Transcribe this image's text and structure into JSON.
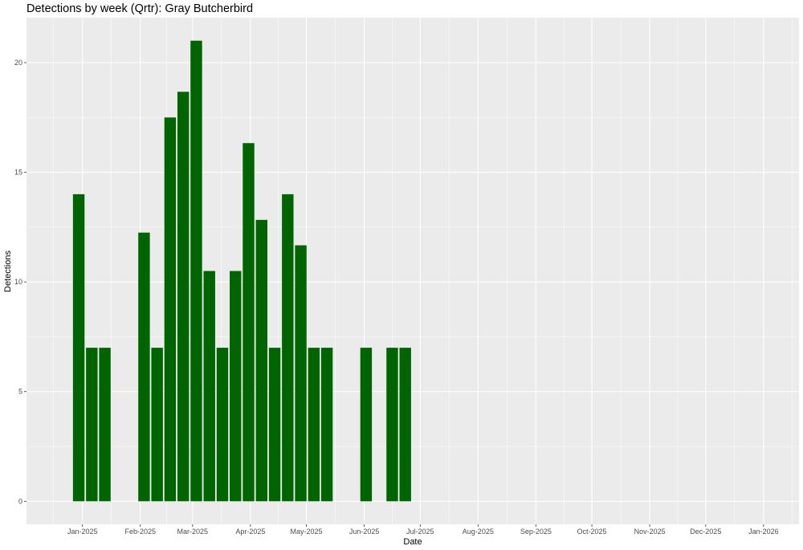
{
  "chart_data": {
    "type": "bar",
    "title": "Detections by week (Qrtr): Gray Butcherbird",
    "xlabel": "Date",
    "ylabel": "Detections",
    "x_range": [
      "2024-12-02",
      "2026-01-20"
    ],
    "ylim": [
      -1.05,
      22.05
    ],
    "y_ticks": [
      0,
      5,
      10,
      15,
      20
    ],
    "x_ticks": [
      {
        "date": "2025-01-01",
        "label": "Jan-2025"
      },
      {
        "date": "2025-02-01",
        "label": "Feb-2025"
      },
      {
        "date": "2025-03-01",
        "label": "Mar-2025"
      },
      {
        "date": "2025-04-01",
        "label": "Apr-2025"
      },
      {
        "date": "2025-05-01",
        "label": "May-2025"
      },
      {
        "date": "2025-06-01",
        "label": "Jun-2025"
      },
      {
        "date": "2025-07-01",
        "label": "Jul-2025"
      },
      {
        "date": "2025-08-01",
        "label": "Aug-2025"
      },
      {
        "date": "2025-09-01",
        "label": "Sep-2025"
      },
      {
        "date": "2025-10-01",
        "label": "Oct-2025"
      },
      {
        "date": "2025-11-01",
        "label": "Nov-2025"
      },
      {
        "date": "2025-12-01",
        "label": "Dec-2025"
      },
      {
        "date": "2026-01-01",
        "label": "Jan-2026"
      }
    ],
    "bar_width_days": 6.2,
    "grid": true,
    "colors": {
      "bar": "#006400",
      "panel": "#ebebeb",
      "grid": "#ffffff"
    },
    "series": [
      {
        "x": [
          "2024-12-30",
          "2025-01-06",
          "2025-01-13",
          "2025-02-03",
          "2025-02-10",
          "2025-02-17",
          "2025-02-24",
          "2025-03-03",
          "2025-03-10",
          "2025-03-17",
          "2025-03-24",
          "2025-03-31",
          "2025-04-07",
          "2025-04-14",
          "2025-04-21",
          "2025-04-28",
          "2025-05-05",
          "2025-05-12",
          "2025-06-02",
          "2025-06-16",
          "2025-06-23"
        ],
        "values": [
          14,
          7,
          7,
          12.25,
          7,
          17.5,
          18.67,
          21,
          10.5,
          7,
          10.5,
          16.33,
          12.83,
          7,
          14,
          11.67,
          7,
          7,
          7,
          7,
          7
        ]
      }
    ]
  }
}
